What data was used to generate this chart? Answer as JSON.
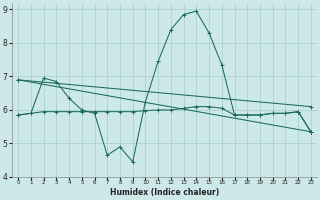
{
  "title": "",
  "xlabel": "Humidex (Indice chaleur)",
  "ylabel": "",
  "bg_color": "#cde8e8",
  "line_color": "#1a6b5a",
  "grid_color": "#a8cccc",
  "xlim": [
    -0.5,
    23.5
  ],
  "ylim": [
    4,
    9.2
  ],
  "yticks": [
    4,
    5,
    6,
    7,
    8,
    9
  ],
  "xticks": [
    0,
    1,
    2,
    3,
    4,
    5,
    6,
    7,
    8,
    9,
    10,
    11,
    12,
    13,
    14,
    15,
    16,
    17,
    18,
    19,
    20,
    21,
    22,
    23
  ],
  "series": [
    {
      "x": [
        0,
        1,
        2,
        3,
        4,
        5,
        6,
        7,
        8,
        9,
        10,
        11,
        12,
        13,
        14,
        15,
        16,
        17,
        18,
        19,
        20,
        21,
        22,
        23
      ],
      "y": [
        5.85,
        5.9,
        5.95,
        5.95,
        5.95,
        5.95,
        5.95,
        5.95,
        5.95,
        5.95,
        5.98,
        6.0,
        6.0,
        6.05,
        6.1,
        6.1,
        6.05,
        5.85,
        5.85,
        5.85,
        5.9,
        5.9,
        5.95,
        5.35
      ]
    },
    {
      "x": [
        0,
        1,
        2,
        3,
        4,
        5,
        6,
        7,
        8,
        9,
        10,
        11,
        12,
        13,
        14,
        15,
        16,
        17,
        18,
        19,
        20,
        21,
        22,
        23
      ],
      "y": [
        5.85,
        5.9,
        6.95,
        6.85,
        6.35,
        6.0,
        5.9,
        4.65,
        4.9,
        4.45,
        6.25,
        7.45,
        8.4,
        8.85,
        8.95,
        8.3,
        7.35,
        5.85,
        5.85,
        5.85,
        5.9,
        5.9,
        5.95,
        5.35
      ]
    },
    {
      "x": [
        0,
        23
      ],
      "y": [
        6.9,
        6.1
      ]
    },
    {
      "x": [
        0,
        23
      ],
      "y": [
        6.9,
        5.35
      ]
    }
  ]
}
